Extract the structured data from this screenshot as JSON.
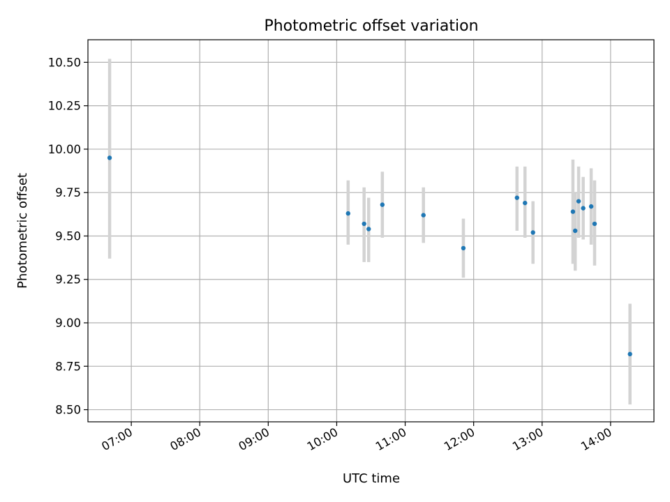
{
  "chart_data": {
    "type": "scatter",
    "title": "Photometric offset variation",
    "xlabel": "UTC time",
    "ylabel": "Photometric offset",
    "grid": true,
    "xlim": [
      "06:22",
      "14:38"
    ],
    "ylim": [
      8.43,
      10.63
    ],
    "x_ticks": [
      "07:00",
      "08:00",
      "09:00",
      "10:00",
      "11:00",
      "12:00",
      "13:00",
      "14:00"
    ],
    "y_ticks": [
      "8.50",
      "8.75",
      "9.00",
      "9.25",
      "9.50",
      "9.75",
      "10.00",
      "10.25",
      "10.50"
    ],
    "marker_color": "#1f77b4",
    "errorbar_color": "#d3d3d3",
    "points": [
      {
        "x": "06:41",
        "y": 9.95,
        "err_low": 9.37,
        "err_high": 10.52
      },
      {
        "x": "10:10",
        "y": 9.63,
        "err_low": 9.45,
        "err_high": 9.82
      },
      {
        "x": "10:24",
        "y": 9.57,
        "err_low": 9.35,
        "err_high": 9.78
      },
      {
        "x": "10:28",
        "y": 9.54,
        "err_low": 9.35,
        "err_high": 9.72
      },
      {
        "x": "10:40",
        "y": 9.68,
        "err_low": 9.49,
        "err_high": 9.87
      },
      {
        "x": "11:16",
        "y": 9.62,
        "err_low": 9.46,
        "err_high": 9.78
      },
      {
        "x": "11:51",
        "y": 9.43,
        "err_low": 9.26,
        "err_high": 9.6
      },
      {
        "x": "12:38",
        "y": 9.72,
        "err_low": 9.53,
        "err_high": 9.9
      },
      {
        "x": "12:45",
        "y": 9.69,
        "err_low": 9.49,
        "err_high": 9.9
      },
      {
        "x": "12:52",
        "y": 9.52,
        "err_low": 9.34,
        "err_high": 9.7
      },
      {
        "x": "13:27",
        "y": 9.64,
        "err_low": 9.34,
        "err_high": 9.94
      },
      {
        "x": "13:29",
        "y": 9.53,
        "err_low": 9.3,
        "err_high": 9.75
      },
      {
        "x": "13:32",
        "y": 9.7,
        "err_low": 9.49,
        "err_high": 9.9
      },
      {
        "x": "13:36",
        "y": 9.66,
        "err_low": 9.48,
        "err_high": 9.84
      },
      {
        "x": "13:43",
        "y": 9.67,
        "err_low": 9.45,
        "err_high": 9.89
      },
      {
        "x": "13:46",
        "y": 9.57,
        "err_low": 9.33,
        "err_high": 9.82
      },
      {
        "x": "14:17",
        "y": 8.82,
        "err_low": 8.53,
        "err_high": 9.11
      }
    ]
  }
}
